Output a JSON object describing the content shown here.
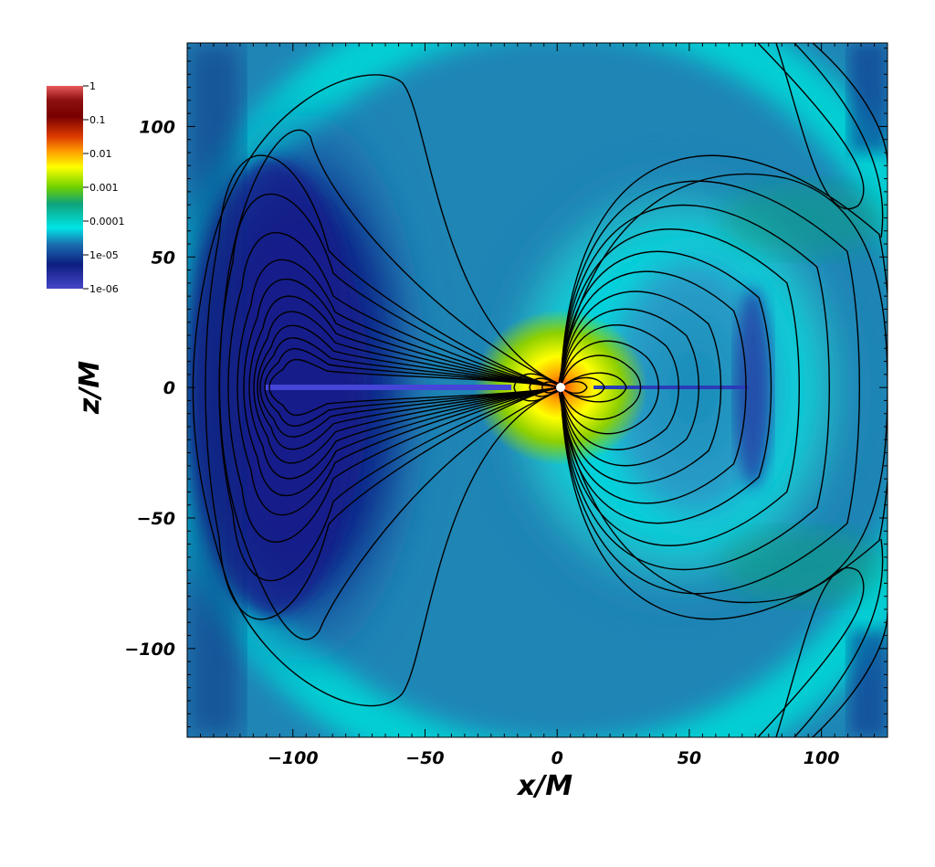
{
  "chart_data": {
    "type": "heatmap",
    "xlabel": "x/M",
    "ylabel": "z/M",
    "xlim": [
      -140,
      125
    ],
    "ylim": [
      -134,
      132
    ],
    "xticks": [
      -100,
      -50,
      0,
      50,
      100
    ],
    "yticks": [
      -100,
      -50,
      0,
      50,
      100
    ],
    "xtick_labels": [
      "−100",
      "−50",
      "0",
      "50",
      "100"
    ],
    "ytick_labels": [
      "−100",
      "−50",
      "0",
      "50",
      "100"
    ],
    "colorbar": {
      "scale": "log",
      "placement": "top-left",
      "range": [
        1e-06,
        1
      ],
      "ticks": [
        1,
        0.1,
        0.01,
        0.001,
        0.0001,
        1e-05,
        1e-06
      ],
      "tick_labels": [
        "1",
        "0.1",
        "0.01",
        "0.001",
        "0.0001",
        "1e-05",
        "1e-06"
      ],
      "colors": [
        "#4545c8",
        "#0c1e80",
        "#1a6fb0",
        "#00e5e5",
        "#0fa37a",
        "#6ed000",
        "#ffff00",
        "#ff9900",
        "#dc3c00",
        "#780000",
        "#e85a5a"
      ]
    },
    "field_lines_color": "#000000",
    "central_object": {
      "x": 0,
      "z": 0,
      "color": "#ffffff"
    }
  }
}
